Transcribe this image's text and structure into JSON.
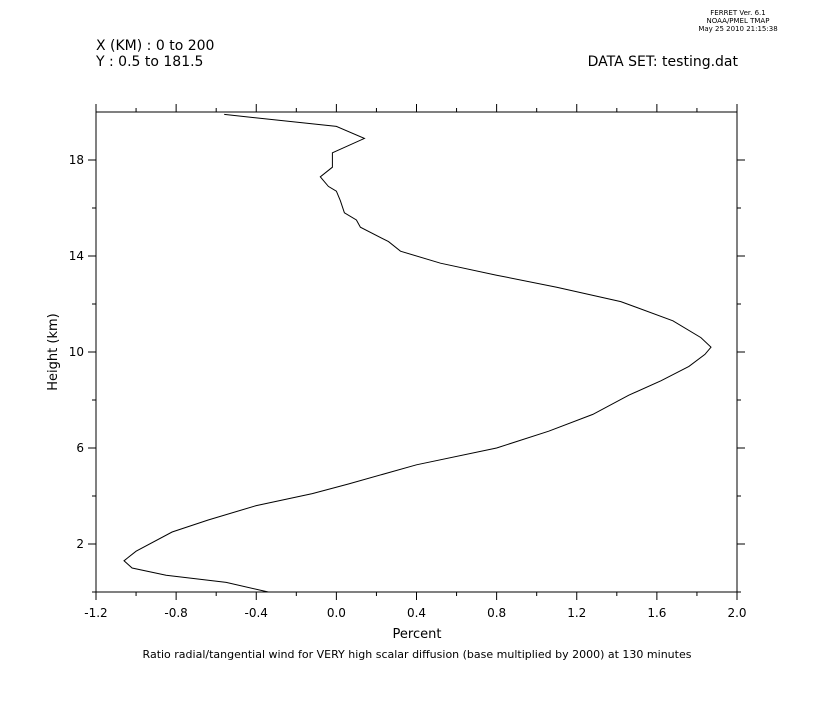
{
  "header": {
    "version_lines": [
      "FERRET Ver. 6.1",
      "NOAA/PMEL TMAP",
      "May 25 2010 21:15:38"
    ],
    "x_range": "X (KM) : 0 to 200",
    "y_range": "Y : 0.5 to 181.5",
    "dataset": "DATA SET: testing.dat"
  },
  "chart_data": {
    "type": "line",
    "xlabel": "Percent",
    "ylabel": "Height (km)",
    "caption": "Ratio radial/tangential wind for VERY high scalar diffusion (base multiplied by 2000) at 130 minutes",
    "xlim": [
      -1.2,
      2.0
    ],
    "ylim": [
      0,
      20
    ],
    "x_ticks": [
      -1.2,
      -0.8,
      -0.4,
      0.0,
      0.4,
      0.8,
      1.2,
      1.6,
      2.0
    ],
    "x_tick_labels": [
      "-1.2",
      "-0.8",
      "-0.4",
      "0.0",
      "0.4",
      "0.8",
      "1.2",
      "1.6",
      "2.0"
    ],
    "y_ticks": [
      2,
      6,
      10,
      14,
      18
    ],
    "y_tick_labels": [
      "2",
      "6",
      "10",
      "14",
      "18"
    ],
    "y_minor_ticks": [
      0,
      4,
      8,
      12,
      16
    ],
    "grid": false,
    "series": [
      {
        "points": [
          [
            -0.34,
            0.0
          ],
          [
            -0.55,
            0.4
          ],
          [
            -0.85,
            0.7
          ],
          [
            -1.02,
            1.0
          ],
          [
            -1.06,
            1.3
          ],
          [
            -1.0,
            1.7
          ],
          [
            -0.82,
            2.5
          ],
          [
            -0.64,
            3.0
          ],
          [
            -0.4,
            3.6
          ],
          [
            -0.12,
            4.1
          ],
          [
            0.06,
            4.5
          ],
          [
            0.4,
            5.3
          ],
          [
            0.8,
            6.0
          ],
          [
            1.06,
            6.7
          ],
          [
            1.28,
            7.4
          ],
          [
            1.46,
            8.2
          ],
          [
            1.62,
            8.8
          ],
          [
            1.76,
            9.4
          ],
          [
            1.84,
            9.9
          ],
          [
            1.87,
            10.2
          ],
          [
            1.82,
            10.6
          ],
          [
            1.68,
            11.3
          ],
          [
            1.42,
            12.1
          ],
          [
            1.1,
            12.7
          ],
          [
            0.8,
            13.2
          ],
          [
            0.52,
            13.7
          ],
          [
            0.32,
            14.2
          ],
          [
            0.26,
            14.6
          ],
          [
            0.12,
            15.2
          ],
          [
            0.1,
            15.5
          ],
          [
            0.04,
            15.8
          ],
          [
            0.02,
            16.3
          ],
          [
            0.0,
            16.7
          ],
          [
            -0.04,
            16.9
          ],
          [
            -0.08,
            17.3
          ],
          [
            -0.02,
            17.7
          ],
          [
            -0.02,
            18.3
          ],
          [
            0.14,
            18.9
          ],
          [
            0.0,
            19.4
          ],
          [
            -0.56,
            19.9
          ]
        ]
      }
    ]
  }
}
